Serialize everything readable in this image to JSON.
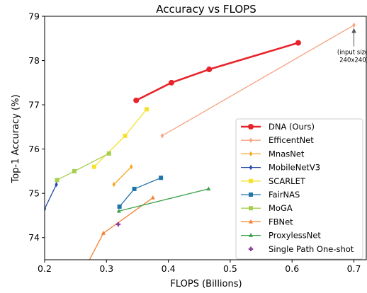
{
  "chart_data": {
    "type": "line",
    "title": "Accuracy vs FLOPS",
    "xlabel": "FLOPS (Billions)",
    "ylabel": "Top-1 Accuracy (%)",
    "xlim": [
      0.2,
      0.72
    ],
    "ylim": [
      73.5,
      79.0
    ],
    "xticks": [
      "0.2",
      "0.3",
      "0.4",
      "0.5",
      "0.6",
      "0.7"
    ],
    "yticks": [
      "74",
      "75",
      "76",
      "77",
      "78",
      "79"
    ],
    "grid": false,
    "legend_position": "lower-right",
    "series": [
      {
        "name": "DNA (Ours)",
        "color": "#e8242b",
        "marker": "circle",
        "x": [
          0.348,
          0.405,
          0.466,
          0.61
        ],
        "y": [
          77.1,
          77.5,
          77.8,
          78.4
        ]
      },
      {
        "name": "EfficentNet",
        "color": "#f6a27f",
        "marker": "diamond",
        "x": [
          0.39,
          0.7
        ],
        "y": [
          76.3,
          78.8
        ]
      },
      {
        "name": "MnasNet",
        "color": "#f4a623",
        "marker": "diamond",
        "x": [
          0.312,
          0.34
        ],
        "y": [
          75.2,
          75.6
        ]
      },
      {
        "name": "MobileNetV3",
        "color": "#2449a8",
        "marker": "diamond",
        "x": [
          0.2,
          0.219
        ],
        "y": [
          74.65,
          75.2
        ]
      },
      {
        "name": "SCARLET",
        "color": "#f5e12e",
        "marker": "square",
        "x": [
          0.28,
          0.33,
          0.365
        ],
        "y": [
          75.6,
          76.3,
          76.9
        ]
      },
      {
        "name": "FairNAS",
        "color": "#1f74aa",
        "marker": "square",
        "x": [
          0.321,
          0.345,
          0.388
        ],
        "y": [
          74.7,
          75.1,
          75.35
        ]
      },
      {
        "name": "MoGA",
        "color": "#a6cf52",
        "marker": "square",
        "x": [
          0.22,
          0.248,
          0.304
        ],
        "y": [
          75.3,
          75.5,
          75.9
        ]
      },
      {
        "name": "FBNet",
        "color": "#f48130",
        "marker": "triangle",
        "x": [
          0.265,
          0.295,
          0.375
        ],
        "y": [
          73.3,
          74.1,
          74.9
        ]
      },
      {
        "name": "ProxylessNet",
        "color": "#3aa04b",
        "marker": "triangle",
        "x": [
          0.32,
          0.465
        ],
        "y": [
          74.6,
          75.1
        ]
      },
      {
        "name": "Single Path One-shot",
        "color": "#8e3ea0",
        "marker": "plus",
        "x": [
          0.319
        ],
        "y": [
          74.3
        ]
      }
    ],
    "annotation": {
      "lines": [
        "(input size:",
        "240x240)"
      ],
      "x": 0.7,
      "y": 78.8
    }
  }
}
